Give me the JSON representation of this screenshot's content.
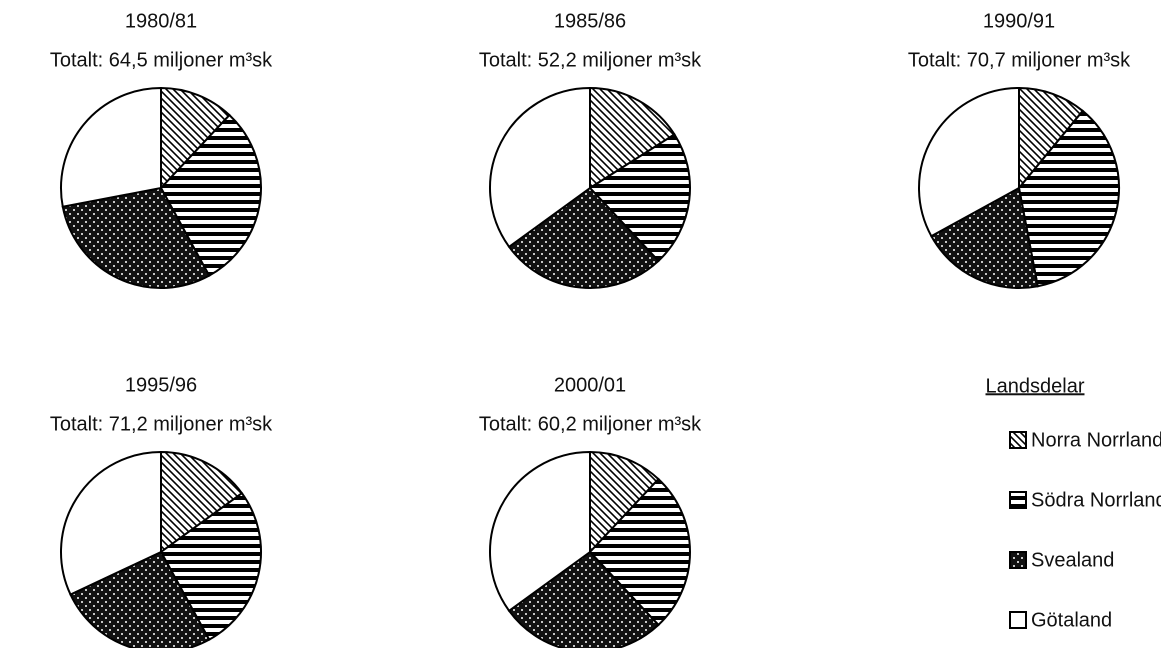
{
  "chart_data": [
    {
      "type": "pie",
      "title": "1980/81",
      "subtitle": "Totalt: 64,5 miljoner m³sk",
      "categories": [
        "Norra Norrland",
        "Södra Norrland",
        "Svealand",
        "Götaland"
      ],
      "values": [
        12,
        30,
        30,
        28
      ]
    },
    {
      "type": "pie",
      "title": "1985/86",
      "subtitle": "Totalt: 52,2 miljoner m³sk",
      "categories": [
        "Norra Norrland",
        "Södra Norrland",
        "Svealand",
        "Götaland"
      ],
      "values": [
        16,
        22,
        27,
        35
      ]
    },
    {
      "type": "pie",
      "title": "1990/91",
      "subtitle": "Totalt: 70,7 miljoner m³sk",
      "categories": [
        "Norra Norrland",
        "Södra Norrland",
        "Svealand",
        "Götaland"
      ],
      "values": [
        11,
        36,
        20,
        33
      ]
    },
    {
      "type": "pie",
      "title": "1995/96",
      "subtitle": "Totalt: 71,2 miljoner m³sk",
      "categories": [
        "Norra Norrland",
        "Södra Norrland",
        "Svealand",
        "Götaland"
      ],
      "values": [
        15,
        27,
        26,
        32
      ]
    },
    {
      "type": "pie",
      "title": "2000/01",
      "subtitle": "Totalt: 60,2 miljoner m³sk",
      "categories": [
        "Norra Norrland",
        "Södra Norrland",
        "Svealand",
        "Götaland"
      ],
      "values": [
        12,
        26,
        27,
        35
      ]
    }
  ],
  "legend_title": "Landsdelar"
}
